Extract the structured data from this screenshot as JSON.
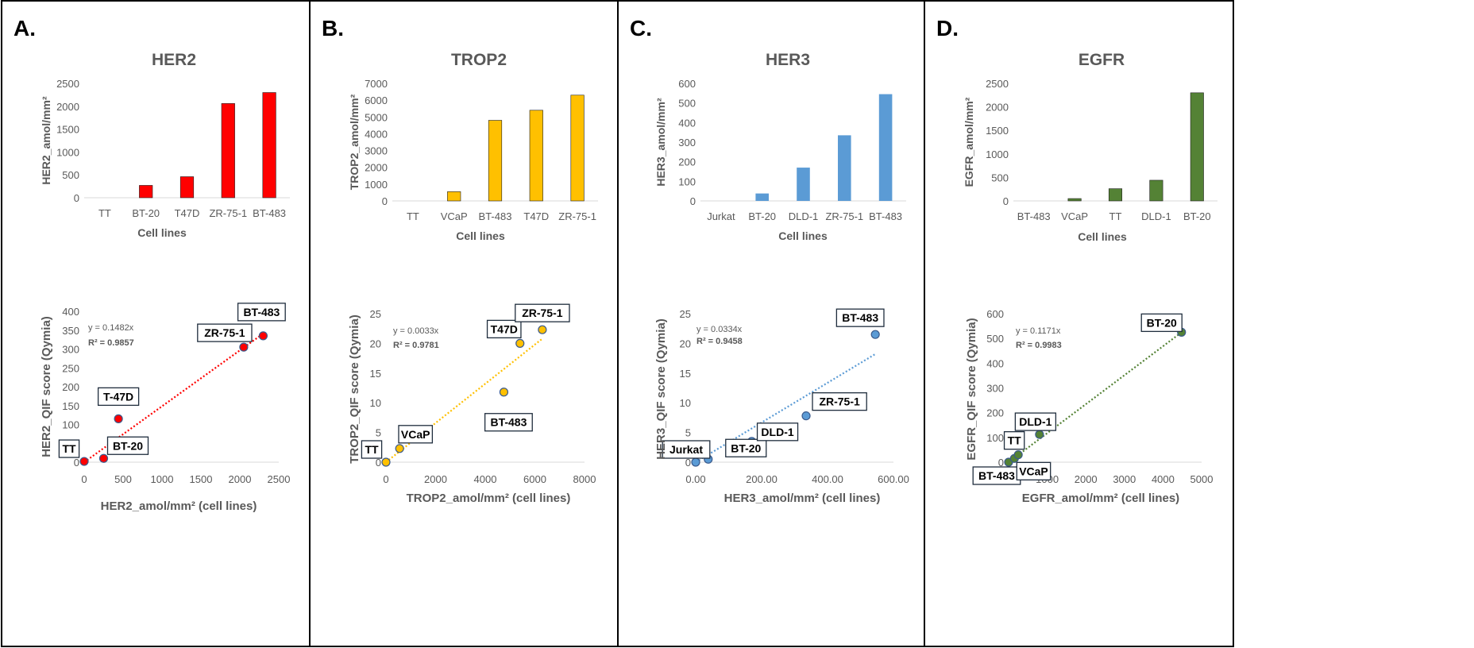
{
  "panels": [
    {
      "letter": "A.",
      "color": "#ff0000",
      "bar": {
        "type": "bar",
        "title": "HER2",
        "ylabel": "HER2_amol/mm²",
        "xlabel": "Cell lines",
        "ylim": [
          0,
          2500
        ],
        "yticks": [
          "0",
          "500",
          "1000",
          "1500",
          "2000",
          "2500"
        ],
        "categories": [
          "TT",
          "BT-20",
          "T47D",
          "ZR-75-1",
          "BT-483"
        ],
        "values": [
          0,
          270,
          460,
          2060,
          2300
        ]
      },
      "scatter": {
        "type": "scatter",
        "xlabel": "HER2_amol/mm² (cell lines)",
        "ylabel": "HER2_QIF score (Qymia)",
        "xlim": [
          0,
          2500
        ],
        "ylim": [
          0,
          400
        ],
        "xticks": [
          "0",
          "500",
          "1000",
          "1500",
          "2000",
          "2500"
        ],
        "yticks": [
          "0",
          "50",
          "100",
          "150",
          "200",
          "250",
          "300",
          "350",
          "400"
        ],
        "equation": "y = 0.1482x",
        "r2": "R² = 0.9857",
        "slope": 0.1482,
        "points": [
          {
            "label": "TT",
            "x": 0,
            "y": 2
          },
          {
            "label": "BT-20",
            "x": 250,
            "y": 10
          },
          {
            "label": "T-47D",
            "x": 440,
            "y": 115
          },
          {
            "label": "ZR-75-1",
            "x": 2050,
            "y": 305
          },
          {
            "label": "BT-483",
            "x": 2300,
            "y": 335
          }
        ]
      }
    },
    {
      "letter": "B.",
      "color": "#ffc000",
      "bar": {
        "type": "bar",
        "title": "TROP2",
        "ylabel": "TROP2_amol/mm²",
        "xlabel": "Cell lines",
        "ylim": [
          0,
          7000
        ],
        "yticks": [
          "0",
          "1000",
          "2000",
          "3000",
          "4000",
          "5000",
          "6000",
          "7000"
        ],
        "categories": [
          "TT",
          "VCaP",
          "BT-483",
          "T47D",
          "ZR-75-1"
        ],
        "values": [
          0,
          550,
          4800,
          5400,
          6300
        ]
      },
      "scatter": {
        "type": "scatter",
        "xlabel": "TROP2_amol/mm² (cell lines)",
        "ylabel": "TROP2_QIF score (Qymia)",
        "xlim": [
          0,
          8000
        ],
        "ylim": [
          0,
          25
        ],
        "xticks": [
          "0",
          "2000",
          "4000",
          "6000",
          "8000"
        ],
        "yticks": [
          "0",
          "5",
          "10",
          "15",
          "20",
          "25"
        ],
        "equation": "y = 0.0033x",
        "r2": "R² = 0.9781",
        "slope": 0.0033,
        "points": [
          {
            "label": "TT",
            "x": 0,
            "y": 0
          },
          {
            "label": "VCaP",
            "x": 550,
            "y": 2.3
          },
          {
            "label": "BT-483",
            "x": 4750,
            "y": 11.8
          },
          {
            "label": "T47D",
            "x": 5400,
            "y": 20
          },
          {
            "label": "ZR-75-1",
            "x": 6300,
            "y": 22.3
          }
        ]
      }
    },
    {
      "letter": "C.",
      "color": "#5b9bd5",
      "bar": {
        "type": "bar",
        "title": "HER3",
        "ylabel": "HER3_amol/mm²",
        "xlabel": "Cell lines",
        "ylim": [
          0,
          600
        ],
        "yticks": [
          "0",
          "100",
          "200",
          "300",
          "400",
          "500",
          "600"
        ],
        "categories": [
          "Jurkat",
          "BT-20",
          "DLD-1",
          "ZR-75-1",
          "BT-483"
        ],
        "values": [
          0,
          38,
          170,
          335,
          545
        ]
      },
      "scatter": {
        "type": "scatter",
        "xlabel": "HER3_amol/mm² (cell lines)",
        "ylabel": "HER3_QIF score (Qymia)",
        "xlim": [
          0,
          600
        ],
        "ylim": [
          0,
          25
        ],
        "xticks": [
          "0.00",
          "200.00",
          "400.00",
          "600.00"
        ],
        "yticks": [
          "0",
          "5",
          "10",
          "15",
          "20",
          "25"
        ],
        "equation": "y = 0.0334x",
        "r2": "R² = 0.9458",
        "slope": 0.0334,
        "points": [
          {
            "label": "Jurkat",
            "x": 0,
            "y": 0
          },
          {
            "label": "BT-20",
            "x": 38,
            "y": 0.5
          },
          {
            "label": "DLD-1",
            "x": 170,
            "y": 3.5
          },
          {
            "label": "ZR-75-1",
            "x": 335,
            "y": 7.8
          },
          {
            "label": "BT-483",
            "x": 545,
            "y": 21.5
          }
        ]
      }
    },
    {
      "letter": "D.",
      "color": "#548235",
      "bar": {
        "type": "bar",
        "title": "EGFR",
        "ylabel": "EGFR_amol/mm²",
        "xlabel": "Cell lines",
        "ylim": [
          0,
          2500
        ],
        "yticks": [
          "0",
          "500",
          "1000",
          "1500",
          "2000",
          "2500"
        ],
        "categories": [
          "BT-483",
          "VCaP",
          "TT",
          "DLD-1",
          "BT-20"
        ],
        "values": [
          0,
          50,
          260,
          440,
          2300
        ]
      },
      "scatter": {
        "type": "scatter",
        "xlabel": "EGFR_amol/mm² (cell lines)",
        "ylabel": "EGFR_QIF score (Qymia)",
        "xlim": [
          0,
          5000
        ],
        "ylim": [
          0,
          600
        ],
        "xticks": [
          "0",
          "1000",
          "2000",
          "3000",
          "4000",
          "5000"
        ],
        "yticks": [
          "0",
          "100",
          "200",
          "300",
          "400",
          "500",
          "600"
        ],
        "equation": "y = 0.1171x",
        "r2": "R² = 0.9983",
        "slope": 0.1171,
        "points": [
          {
            "label": "BT-483",
            "x": 0,
            "y": 0
          },
          {
            "label": "VCaP",
            "x": 150,
            "y": 15
          },
          {
            "label": "TT",
            "x": 250,
            "y": 30
          },
          {
            "label": "DLD-1",
            "x": 800,
            "y": 112
          },
          {
            "label": "BT-20",
            "x": 4480,
            "y": 525
          }
        ]
      }
    }
  ]
}
